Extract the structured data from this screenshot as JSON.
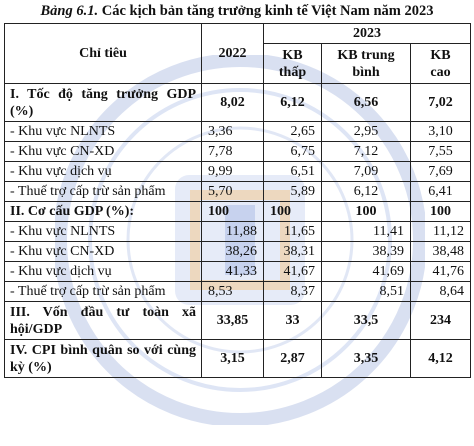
{
  "caption": {
    "lead": "Bảng 6.1.",
    "text": " Các kịch bản tăng trưởng kinh tế Việt Nam năm 2023"
  },
  "header": {
    "indicator": "Chỉ tiêu",
    "y2022": "2022",
    "y2023": "2023",
    "kb_low_1": "KB",
    "kb_low_2": "thấp",
    "kb_mid_1": "KB trung",
    "kb_mid_2": "bình",
    "kb_high_1": "KB",
    "kb_high_2": "cao"
  },
  "rows": [
    {
      "label": "I. Tốc độ tăng trưởng GDP (%)",
      "v2022": "8,02",
      "low": "6,12",
      "mid": "6,56",
      "high": "7,02",
      "bold": true
    },
    {
      "label": "- Khu vực NLNTS",
      "v2022": "3,36",
      "low": "2,65",
      "mid": "2,95",
      "high": "3,10"
    },
    {
      "label": "- Khu vực CN-XD",
      "v2022": "7,78",
      "low": "6,75",
      "mid": "7,12",
      "high": "7,55"
    },
    {
      "label": "- Khu vực dịch vụ",
      "v2022": "9,99",
      "low": "6,51",
      "mid": "7,09",
      "high": "7,69"
    },
    {
      "label": "- Thuế trợ cấp trừ sản phẩm",
      "v2022": "5,70",
      "low": "5,89",
      "mid": "6,12",
      "high": "6,41"
    },
    {
      "label": "II. Cơ cấu GDP (%):",
      "v2022": "100",
      "low": "100",
      "mid": "100",
      "high": "100",
      "bold": true
    },
    {
      "label": "- Khu vực NLNTS",
      "v2022": "11,88",
      "low": "11,65",
      "mid": "11,41",
      "high": "11,12"
    },
    {
      "label": "- Khu vực CN-XD",
      "v2022": "38,26",
      "low": "38,31",
      "mid": "38,39",
      "high": "38,48"
    },
    {
      "label": "- Khu vực dịch vụ",
      "v2022": "41,33",
      "low": "41,67",
      "mid": "41,69",
      "high": "41,76"
    },
    {
      "label": "- Thuế trợ cấp trừ sản phẩm",
      "v2022": "8,53",
      "low": "8,37",
      "mid": "8,51",
      "high": "8,64"
    },
    {
      "label": "III. Vốn đầu tư toàn xã hội/GDP",
      "v2022": "33,85",
      "low": "33",
      "mid": "33,5",
      "high": "234",
      "bold": true
    },
    {
      "label": "IV. CPI bình quân so với cùng kỳ (%)",
      "v2022": "3,15",
      "low": "2,87",
      "mid": "3,35",
      "high": "4,12",
      "bold": true
    }
  ]
}
